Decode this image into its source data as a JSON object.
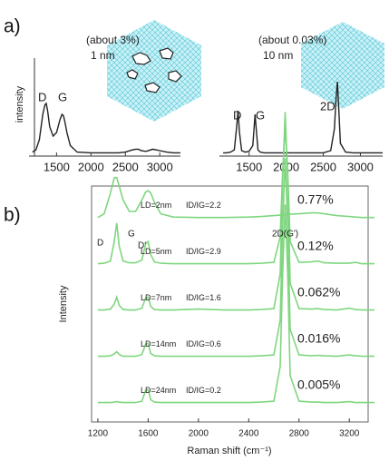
{
  "chart_data": [
    {
      "type": "line",
      "panel": "a)",
      "ylabel": "intensity",
      "x": [
        1150,
        1200,
        1250,
        1300,
        1330,
        1350,
        1370,
        1400,
        1450,
        1500,
        1550,
        1580,
        1600,
        1620,
        1650,
        1700,
        1800,
        2000,
        2200,
        2400,
        2500,
        2600,
        2650,
        2670,
        2690,
        2710,
        2730,
        2800,
        2900,
        3000,
        3100,
        3200,
        3300
      ],
      "xlim": [
        1100,
        3300
      ],
      "xticks": [
        1500,
        2000,
        2500,
        3000
      ],
      "ylim": [
        0,
        1.2
      ],
      "series": [
        {
          "name": "1 nm",
          "color": "#222222",
          "values": [
            0.03,
            0.06,
            0.2,
            0.55,
            0.68,
            0.7,
            0.6,
            0.38,
            0.25,
            0.3,
            0.48,
            0.55,
            0.53,
            0.45,
            0.3,
            0.12,
            0.03,
            0.02,
            0.02,
            0.02,
            0.03,
            0.06,
            0.07,
            0.07,
            0.07,
            0.06,
            0.05,
            0.04,
            0.07,
            0.05,
            0.03,
            0.02,
            0.02
          ]
        }
      ],
      "annotations": [
        "(about 3%)",
        "D",
        "G"
      ]
    },
    {
      "type": "line",
      "x": [
        1150,
        1200,
        1250,
        1300,
        1330,
        1350,
        1370,
        1400,
        1450,
        1500,
        1550,
        1580,
        1600,
        1620,
        1650,
        1700,
        1800,
        2000,
        2200,
        2400,
        2500,
        2600,
        2650,
        2670,
        2690,
        2710,
        2730,
        2800,
        2900,
        3000,
        3100,
        3200,
        3300
      ],
      "xlim": [
        1100,
        3300
      ],
      "xticks": [
        1500,
        2000,
        2500,
        3000
      ],
      "ylim": [
        0,
        1.2
      ],
      "series": [
        {
          "name": "10 nm",
          "color": "#222222",
          "values": [
            0.02,
            0.02,
            0.03,
            0.06,
            0.35,
            0.6,
            0.3,
            0.05,
            0.03,
            0.04,
            0.12,
            0.55,
            0.3,
            0.06,
            0.03,
            0.02,
            0.02,
            0.02,
            0.02,
            0.02,
            0.02,
            0.05,
            0.35,
            0.75,
            1.0,
            0.6,
            0.15,
            0.03,
            0.02,
            0.02,
            0.02,
            0.02,
            0.02
          ]
        }
      ],
      "annotations": [
        "(about 0.03%)",
        "D",
        "G",
        "2D"
      ]
    },
    {
      "type": "line",
      "panel": "b)",
      "xlabel": "Raman shift (cm⁻¹)",
      "ylabel": "Intensity",
      "x": [
        1200,
        1250,
        1300,
        1330,
        1350,
        1370,
        1400,
        1450,
        1500,
        1550,
        1580,
        1600,
        1620,
        1650,
        1700,
        1800,
        2000,
        2200,
        2400,
        2500,
        2600,
        2650,
        2670,
        2690,
        2710,
        2730,
        2800,
        2900,
        2950,
        3000,
        3100,
        3200,
        3250,
        3300,
        3400
      ],
      "xlim": [
        1150,
        3350
      ],
      "xticks": [
        1200,
        1600,
        2000,
        2400,
        2800,
        3200
      ],
      "ylim": [
        -0.4,
        4.7
      ],
      "series": [
        {
          "name": "LD=2nm",
          "ratio": "ID/IG=2.2",
          "label": "0.77%",
          "color": "#7fd67f",
          "values": [
            0.02,
            0.1,
            0.55,
            0.88,
            0.88,
            0.7,
            0.4,
            0.15,
            0.15,
            0.4,
            0.57,
            0.6,
            0.55,
            0.35,
            0.1,
            0.03,
            0.02,
            0.02,
            0.03,
            0.04,
            0.06,
            0.07,
            0.08,
            0.08,
            0.09,
            0.09,
            0.1,
            0.12,
            0.12,
            0.1,
            0.06,
            0.04,
            0.03,
            0.02,
            0.02
          ]
        },
        {
          "name": "LD=5nm",
          "ratio": "ID/IG=2.9",
          "label": "0.12%",
          "color": "#7fd67f",
          "values": [
            0.02,
            0.03,
            0.08,
            0.5,
            0.9,
            0.4,
            0.08,
            0.04,
            0.04,
            0.1,
            0.45,
            0.5,
            0.22,
            0.06,
            0.03,
            0.02,
            0.02,
            0.02,
            0.02,
            0.03,
            0.05,
            0.6,
            2.0,
            3.0,
            2.0,
            0.5,
            0.05,
            0.06,
            0.08,
            0.04,
            0.03,
            0.03,
            0.05,
            0.02,
            0.02
          ]
        },
        {
          "name": "LD=7nm",
          "ratio": "ID/IG=1.6",
          "label": "0.062%",
          "color": "#7fd67f",
          "values": [
            0.02,
            0.02,
            0.04,
            0.15,
            0.3,
            0.12,
            0.03,
            0.02,
            0.02,
            0.06,
            0.28,
            0.3,
            0.1,
            0.03,
            0.02,
            0.02,
            0.04,
            0.02,
            0.02,
            0.03,
            0.05,
            0.8,
            2.8,
            4.3,
            2.8,
            0.6,
            0.05,
            0.04,
            0.05,
            0.03,
            0.02,
            0.06,
            0.03,
            0.02,
            0.02
          ]
        },
        {
          "name": "LD=14nm",
          "ratio": "ID/IG=0.6",
          "label": "0.016%",
          "color": "#7fd67f",
          "values": [
            0.02,
            0.02,
            0.03,
            0.07,
            0.12,
            0.06,
            0.02,
            0.02,
            0.02,
            0.06,
            0.28,
            0.3,
            0.08,
            0.03,
            0.02,
            0.02,
            0.02,
            0.02,
            0.02,
            0.03,
            0.05,
            0.8,
            2.8,
            4.3,
            2.8,
            0.6,
            0.05,
            0.03,
            0.04,
            0.03,
            0.02,
            0.05,
            0.03,
            0.02,
            0.02
          ]
        },
        {
          "name": "LD=24nm",
          "ratio": "ID/IG=0.2",
          "label": "0.005%",
          "color": "#7fd67f",
          "values": [
            0.02,
            0.02,
            0.02,
            0.03,
            0.04,
            0.03,
            0.02,
            0.02,
            0.02,
            0.05,
            0.28,
            0.3,
            0.08,
            0.03,
            0.02,
            0.02,
            0.02,
            0.02,
            0.02,
            0.03,
            0.05,
            0.8,
            2.8,
            4.3,
            2.8,
            0.6,
            0.05,
            0.03,
            0.03,
            0.02,
            0.02,
            0.04,
            0.02,
            0.02,
            0.02
          ]
        }
      ],
      "annotations": [
        "D",
        "G",
        "D'",
        "2D(G')"
      ]
    }
  ]
}
